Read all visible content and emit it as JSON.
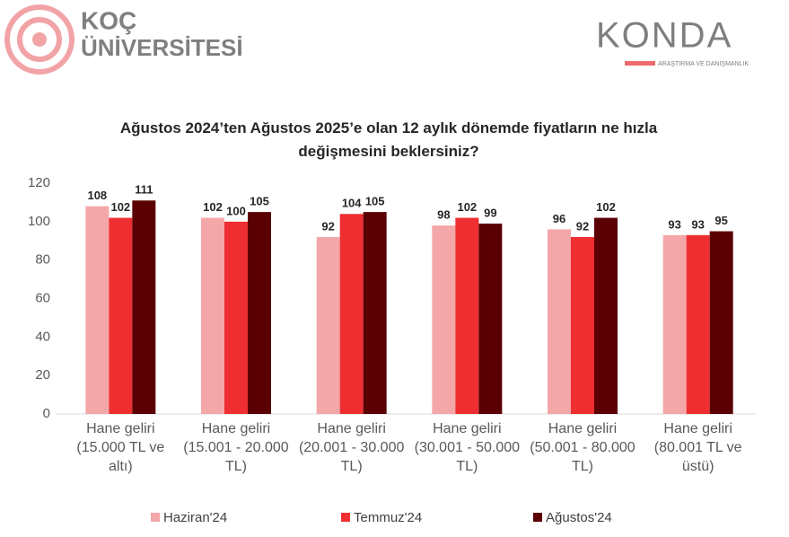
{
  "header": {
    "left_logo": [
      "KOÇ",
      "ÜNİVERSİTESİ"
    ],
    "right_logo": "KONDA",
    "right_logo_tagline": "ARAŞTIRMA VE DANIŞMANLIK"
  },
  "chart_data": {
    "type": "bar",
    "title": "Ağustos 2024’ten Ağustos 2025’e olan 12 aylık dönemde fiyatların ne hızla değişmesini beklersiniz?",
    "categories": [
      "Hane geliri (15.000 TL ve altı)",
      "Hane geliri (15.001 - 20.000 TL)",
      "Hane geliri (20.001 - 30.000 TL)",
      "Hane geliri (30.001 - 50.000 TL)",
      "Hane geliri (50.001 - 80.000 TL)",
      "Hane geliri (80.001 TL ve üstü)"
    ],
    "series": [
      {
        "name": "Haziran'24",
        "color": "#f4a7a9",
        "values": [
          108,
          102,
          92,
          98,
          96,
          93
        ]
      },
      {
        "name": "Temmuz'24",
        "color": "#ee2e31",
        "values": [
          102,
          100,
          104,
          102,
          92,
          93
        ]
      },
      {
        "name": "Ağustos'24",
        "color": "#5a0003",
        "values": [
          111,
          105,
          105,
          99,
          102,
          95
        ]
      }
    ],
    "ylim": [
      0,
      120
    ],
    "yticks": [
      0,
      20,
      40,
      60,
      80,
      100,
      120
    ],
    "grid": false,
    "legend": "bottom"
  }
}
